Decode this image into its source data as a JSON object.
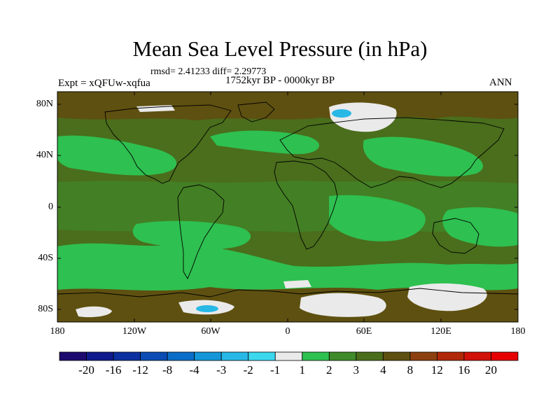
{
  "title": "Mean Sea Level Pressure (in hPa)",
  "stats": "rmsd= 2.41233  diff= 2.29773",
  "period": "1752kyr BP - 0000kyr BP",
  "experiment": "Expt = xQFUw-xqfua",
  "season": "ANN",
  "lat_labels": [
    "80N",
    "40N",
    "0",
    "40S",
    "80S"
  ],
  "lon_labels": [
    "180",
    "120W",
    "60W",
    "0",
    "60E",
    "120E",
    "180"
  ],
  "colorbar": {
    "labels": [
      "-20",
      "-16",
      "-12",
      "-8",
      "-4",
      "-3",
      "-2",
      "-1",
      "1",
      "2",
      "3",
      "4",
      "8",
      "12",
      "16",
      "20"
    ],
    "colors": [
      "#1c0a6e",
      "#0e1a8c",
      "#0a2fa0",
      "#0a4cb4",
      "#0a6ec8",
      "#1496d8",
      "#28b8e6",
      "#3cd8ee",
      "#eaeaea",
      "#2ec050",
      "#3f8a2a",
      "#4a6e1c",
      "#5e5010",
      "#8c4010",
      "#b02808",
      "#d01208",
      "#e60000"
    ]
  },
  "field_colors": {
    "base": "#4a6e1c",
    "green": "#2ec050",
    "olive": "#3f8a2a",
    "brown": "#5e5010",
    "white": "#eaeaea",
    "cyan": "#28b8e6"
  }
}
